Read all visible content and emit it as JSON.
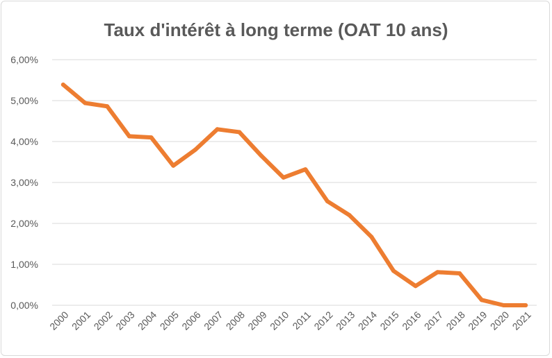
{
  "chart_data": {
    "type": "line",
    "title": "Taux d'intérêt à long terme (OAT 10 ans)",
    "xlabel": "",
    "ylabel": "",
    "categories": [
      "2000",
      "2001",
      "2002",
      "2003",
      "2004",
      "2005",
      "2006",
      "2007",
      "2008",
      "2009",
      "2010",
      "2011",
      "2012",
      "2013",
      "2014",
      "2015",
      "2016",
      "2017",
      "2018",
      "2019",
      "2020",
      "2021"
    ],
    "series": [
      {
        "values": [
          5.39,
          4.94,
          4.86,
          4.13,
          4.1,
          3.41,
          3.8,
          4.3,
          4.23,
          3.65,
          3.12,
          3.32,
          2.54,
          2.2,
          1.67,
          0.84,
          0.47,
          0.81,
          0.78,
          0.13,
          0.0,
          0.0
        ],
        "color": "#ed7d31"
      }
    ],
    "ylim": [
      0,
      6
    ],
    "yticks": [
      "0,00%",
      "1,00%",
      "2,00%",
      "3,00%",
      "4,00%",
      "5,00%",
      "6,00%"
    ],
    "grid": true,
    "legend": "none"
  }
}
